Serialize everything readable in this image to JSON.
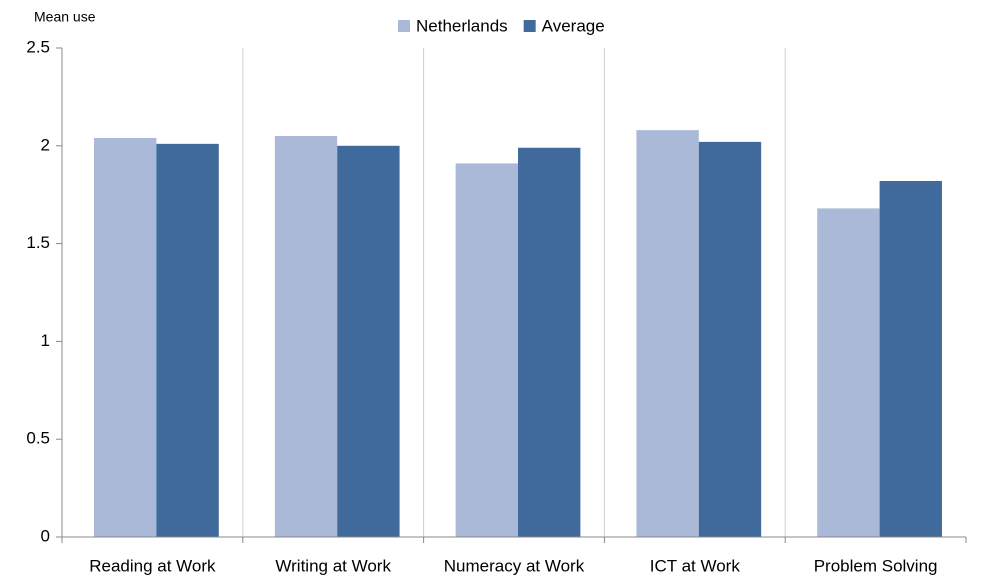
{
  "chart_data": {
    "type": "bar",
    "y_label": "Mean use",
    "categories": [
      "Reading at Work",
      "Writing at Work",
      "Numeracy at Work",
      "ICT at Work",
      "Problem Solving"
    ],
    "series": [
      {
        "name": "Netherlands",
        "color": "#aab9d8",
        "values": [
          2.04,
          2.05,
          1.91,
          2.08,
          1.68
        ]
      },
      {
        "name": "Average",
        "color": "#406a9c",
        "values": [
          2.01,
          2.0,
          1.99,
          2.02,
          1.82
        ]
      }
    ],
    "ylim": [
      0,
      2.5
    ],
    "yticks": [
      0,
      0.5,
      1,
      1.5,
      2,
      2.5
    ],
    "grid": "vertical",
    "legend": "top"
  }
}
